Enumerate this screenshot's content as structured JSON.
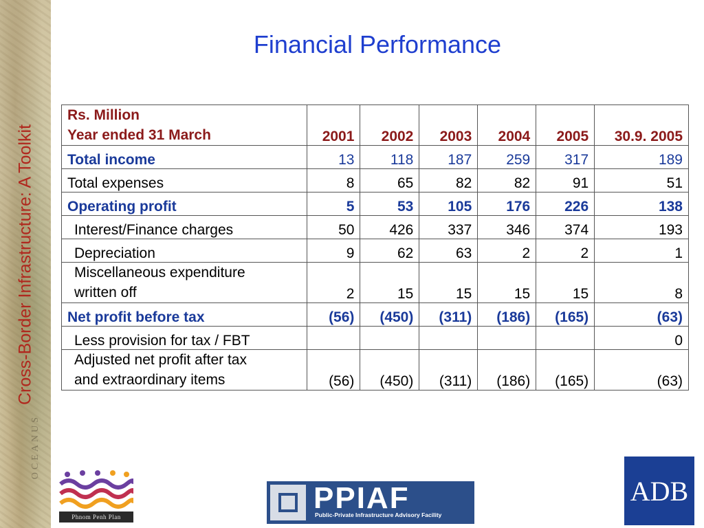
{
  "side_title": "Cross-Border Infrastructure: A Toolkit",
  "side_watermark": "OCEANUS",
  "title": "Financial Performance",
  "table": {
    "header": {
      "unit": "Rs. Million",
      "period": "Year ended 31 March",
      "years": [
        "2001",
        "2002",
        "2003",
        "2004",
        "2005",
        "30.9. 2005"
      ]
    },
    "rows": [
      {
        "label": "Total income",
        "values": [
          "13",
          "118",
          "187",
          "259",
          "317",
          "189"
        ]
      },
      {
        "label": "Total expenses",
        "values": [
          "8",
          "65",
          "82",
          "82",
          "91",
          "51"
        ]
      },
      {
        "label": "Operating profit",
        "values": [
          "5",
          "53",
          "105",
          "176",
          "226",
          "138"
        ]
      },
      {
        "label": "Interest/Finance charges",
        "values": [
          "50",
          "426",
          "337",
          "346",
          "374",
          "193"
        ]
      },
      {
        "label": "Depreciation",
        "values": [
          "9",
          "62",
          "63",
          "2",
          "2",
          "1"
        ]
      },
      {
        "label_line1": "Miscellaneous expenditure",
        "label_line2": "written off",
        "values": [
          "2",
          "15",
          "15",
          "15",
          "15",
          "8"
        ]
      },
      {
        "label": "Net profit before tax",
        "values": [
          "(56)",
          "(450)",
          "(311)",
          "(186)",
          "(165)",
          "(63)"
        ]
      },
      {
        "label": "Less provision for tax / FBT",
        "values": [
          "",
          "",
          "",
          "",
          "",
          "0"
        ]
      },
      {
        "label_line1": "Adjusted net profit after tax",
        "label_line2": "and extraordinary items",
        "values": [
          "(56)",
          "(450)",
          "(311)",
          "(186)",
          "(165)",
          "(63)"
        ]
      }
    ]
  },
  "logos": {
    "phnom_penh": "Phnom Penh Plan",
    "ppiaf": "PPIAF",
    "ppiaf_tagline": "Public-Private Infrastructure Advisory Facility",
    "adb": "ADB"
  },
  "colors": {
    "title_blue": "#1f3fcf",
    "header_red": "#8b1a1a",
    "highlight_blue": "#1a3a9a",
    "side_title_red": "#b0281e",
    "adb_blue": "#1b3f94",
    "ppiaf_blue": "#2c4f8a"
  }
}
